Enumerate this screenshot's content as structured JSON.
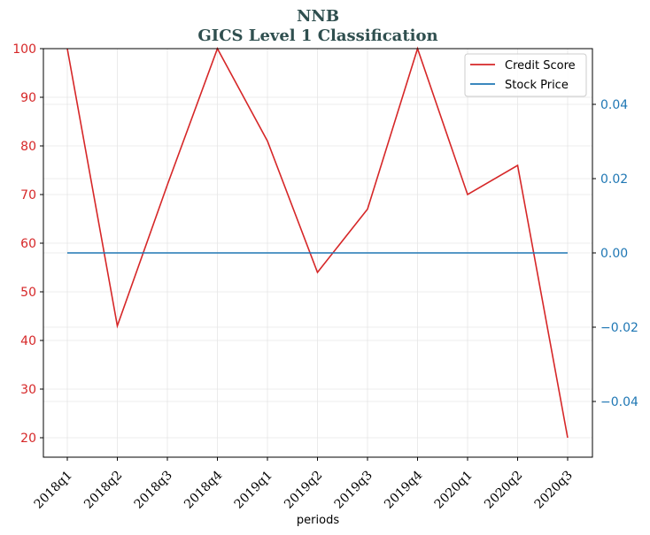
{
  "chart_data": {
    "type": "line",
    "title": "NNB",
    "subtitle": "GICS Level 1 Classification",
    "xlabel": "periods",
    "ylabel_left": "",
    "ylabel_right": "",
    "categories": [
      "2018q1",
      "2018q2",
      "2018q3",
      "2018q4",
      "2019q1",
      "2019q2",
      "2019q3",
      "2019q4",
      "2020q1",
      "2020q2",
      "2020q3"
    ],
    "series": [
      {
        "name": "Credit Score",
        "axis": "left",
        "color": "#d62728",
        "values": [
          100,
          43,
          72,
          100,
          81,
          54,
          67,
          100,
          70,
          76,
          20
        ]
      },
      {
        "name": "Stock Price",
        "axis": "right",
        "color": "#1f77b4",
        "values": [
          0,
          0,
          0,
          0,
          0,
          0,
          0,
          0,
          0,
          0,
          0
        ]
      }
    ],
    "ylim_left": [
      16,
      100
    ],
    "yticks_left": [
      20,
      30,
      40,
      50,
      60,
      70,
      80,
      90,
      100
    ],
    "ylim_right": [
      -0.055,
      0.055
    ],
    "yticks_right": [
      "0.04",
      "0.02",
      "0.00",
      "−0.02",
      "−0.04"
    ],
    "yticks_right_values": [
      0.04,
      0.02,
      0,
      -0.02,
      -0.04
    ],
    "grid": true,
    "legend": "top-right",
    "title_color": "#2f4f4f",
    "left_axis_color": "#d62728",
    "right_axis_color": "#1f77b4"
  }
}
